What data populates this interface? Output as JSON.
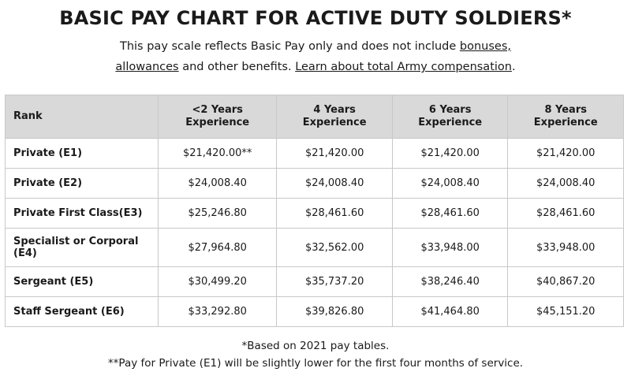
{
  "title": "BASIC PAY CHART FOR ACTIVE DUTY SOLDIERS*",
  "intro": {
    "text1": "This pay scale reflects Basic Pay only and does not include ",
    "link_bonuses": "bonuses,",
    "link_allowances": "allowances",
    "text2": " and other benefits. ",
    "link_compensation": "Learn about total Army compensation",
    "text3": "."
  },
  "table": {
    "headers": {
      "rank": "Rank",
      "y2_line1": "<2 Years",
      "y2_line2": "Experience",
      "y4_line1": "4 Years",
      "y4_line2": "Experience",
      "y6_line1": "6 Years",
      "y6_line2": "Experience",
      "y8_line1": "8 Years",
      "y8_line2": "Experience"
    },
    "rows": [
      {
        "rank": "Private (E1)",
        "v2": "$21,420.00**",
        "v4": "$21,420.00",
        "v6": "$21,420.00",
        "v8": "$21,420.00"
      },
      {
        "rank": "Private (E2)",
        "v2": "$24,008.40",
        "v4": "$24,008.40",
        "v6": "$24,008.40",
        "v8": "$24,008.40"
      },
      {
        "rank": "Private First Class(E3)",
        "v2": "$25,246.80",
        "v4": "$28,461.60",
        "v6": "$28,461.60",
        "v8": "$28,461.60"
      },
      {
        "rank": "Specialist or Corporal (E4)",
        "v2": "$27,964.80",
        "v4": "$32,562.00",
        "v6": "$33,948.00",
        "v8": "$33,948.00"
      },
      {
        "rank": "Sergeant (E5)",
        "v2": "$30,499.20",
        "v4": "$35,737.20",
        "v6": "$38,246.40",
        "v8": "$40,867.20"
      },
      {
        "rank": "Staff Sergeant (E6)",
        "v2": "$33,292.80",
        "v4": "$39,826.80",
        "v6": "$41,464.80",
        "v8": "$45,151.20"
      }
    ]
  },
  "notes": {
    "note1": "*Based on 2021 pay tables.",
    "note2": "**Pay for Private (E1) will be slightly lower for the first four months of service."
  }
}
